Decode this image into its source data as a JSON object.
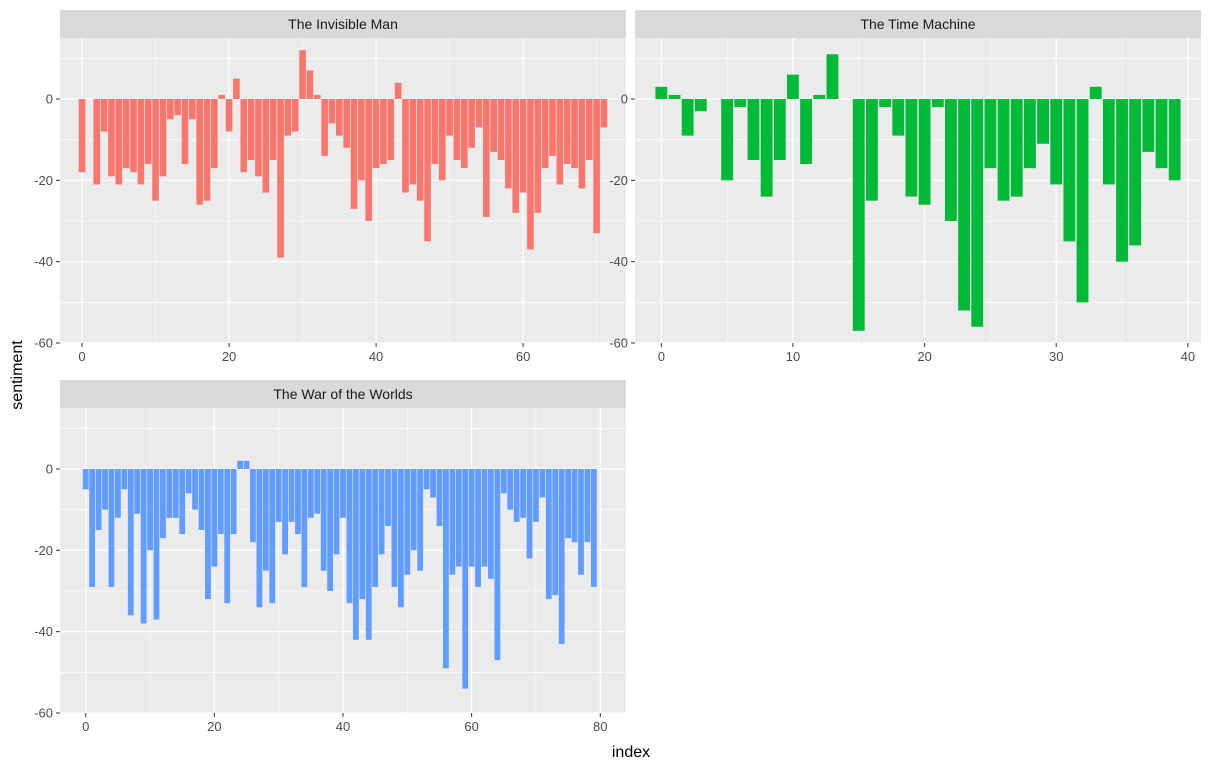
{
  "chart_data": {
    "type": "bar",
    "facet": "wrap",
    "xlabel": "index",
    "ylabel": "sentiment",
    "ylim": [
      -60,
      15
    ],
    "yticks": [
      -60,
      -40,
      -20,
      0
    ],
    "grid": true,
    "legend": "none",
    "panels": [
      {
        "title": "The Invisible Man",
        "color": "#f8766d",
        "xlim": [
          -3,
          74
        ],
        "xticks": [
          0,
          20,
          40,
          60
        ],
        "x": [
          0,
          1,
          2,
          3,
          4,
          5,
          6,
          7,
          8,
          9,
          10,
          11,
          12,
          13,
          14,
          15,
          16,
          17,
          18,
          19,
          20,
          21,
          22,
          23,
          24,
          25,
          26,
          27,
          28,
          29,
          30,
          31,
          32,
          33,
          34,
          35,
          36,
          37,
          38,
          39,
          40,
          41,
          42,
          43,
          44,
          45,
          46,
          47,
          48,
          49,
          50,
          51,
          52,
          53,
          54,
          55,
          56,
          57,
          58,
          59,
          60,
          61,
          62,
          63,
          64,
          65,
          66,
          67,
          68,
          69,
          70,
          71
        ],
        "values": [
          -18,
          0,
          -21,
          -8,
          -19,
          -21,
          -17,
          -18,
          -21,
          -16,
          -25,
          -19,
          -5,
          -4,
          -16,
          -5,
          -26,
          -25,
          -17,
          1,
          -8,
          5,
          -18,
          -15,
          -19,
          -23,
          -15,
          -39,
          -9,
          -8,
          12,
          7,
          1,
          -14,
          -6,
          -9,
          -12,
          -27,
          -20,
          -30,
          -17,
          -16,
          -15,
          4,
          -23,
          -21,
          -25,
          -35,
          -16,
          -20,
          -9,
          -15,
          -17,
          -12,
          -7,
          -29,
          -13,
          -15,
          -22,
          -28,
          -23,
          -37,
          -28,
          -17,
          -14,
          -21,
          -16,
          -17,
          -22,
          -15,
          -33,
          -7
        ]
      },
      {
        "title": "The Time Machine",
        "color": "#00ba38",
        "xlim": [
          -2,
          41
        ],
        "xticks": [
          0,
          10,
          20,
          30,
          40
        ],
        "x": [
          0,
          1,
          2,
          3,
          4,
          5,
          6,
          7,
          8,
          9,
          10,
          11,
          12,
          13,
          14,
          15,
          16,
          17,
          18,
          19,
          20,
          21,
          22,
          23,
          24,
          25,
          26,
          27,
          28,
          29,
          30,
          31,
          32,
          33,
          34,
          35,
          36,
          37,
          38,
          39
        ],
        "values": [
          3,
          1,
          -9,
          -3,
          0,
          -20,
          -2,
          -15,
          -24,
          -15,
          6,
          -16,
          1,
          11,
          0,
          -57,
          -25,
          -2,
          -9,
          -24,
          -26,
          -2,
          -30,
          -52,
          -56,
          -17,
          -25,
          -24,
          -17,
          -11,
          -21,
          -35,
          -50,
          3,
          -21,
          -40,
          -36,
          -13,
          -17,
          -20
        ]
      },
      {
        "title": "The War of the Worlds",
        "color": "#619cff",
        "xlim": [
          -4,
          84
        ],
        "xticks": [
          0,
          20,
          40,
          60,
          80
        ],
        "x": [
          0,
          1,
          2,
          3,
          4,
          5,
          6,
          7,
          8,
          9,
          10,
          11,
          12,
          13,
          14,
          15,
          16,
          17,
          18,
          19,
          20,
          21,
          22,
          23,
          24,
          25,
          26,
          27,
          28,
          29,
          30,
          31,
          32,
          33,
          34,
          35,
          36,
          37,
          38,
          39,
          40,
          41,
          42,
          43,
          44,
          45,
          46,
          47,
          48,
          49,
          50,
          51,
          52,
          53,
          54,
          55,
          56,
          57,
          58,
          59,
          60,
          61,
          62,
          63,
          64,
          65,
          66,
          67,
          68,
          69,
          70,
          71,
          72,
          73,
          74,
          75,
          76,
          77,
          78,
          79
        ],
        "values": [
          -5,
          -29,
          -15,
          -10,
          -29,
          -12,
          -5,
          -36,
          -11,
          -38,
          -20,
          -37,
          -17,
          -12,
          -12,
          -16,
          -6,
          -10,
          -15,
          -32,
          -24,
          -16,
          -33,
          -16,
          2,
          2,
          -18,
          -34,
          -25,
          -33,
          -13,
          -21,
          -13,
          -16,
          -29,
          -12,
          -11,
          -25,
          -30,
          -21,
          -12,
          -33,
          -42,
          -32,
          -42,
          -29,
          -21,
          -14,
          -29,
          -34,
          -26,
          -20,
          -25,
          -5,
          -7,
          -14,
          -49,
          -26,
          -24,
          -54,
          -24,
          -29,
          -24,
          -27,
          -47,
          -6,
          -10,
          -13,
          -12,
          -22,
          -13,
          -7,
          -32,
          -31,
          -43,
          -17,
          -18,
          -26,
          -18,
          -29
        ]
      }
    ]
  }
}
